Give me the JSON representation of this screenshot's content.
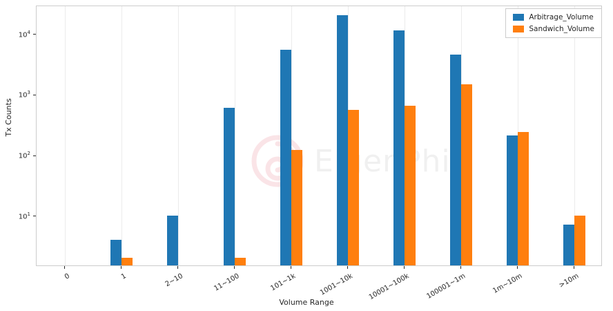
{
  "chart_data": {
    "type": "bar",
    "categories": [
      "0",
      "1",
      "2~10",
      "11~100",
      "101~1k",
      "1001~10k",
      "10001~100k",
      "100001~1m",
      "1m~10m",
      ">10m"
    ],
    "series": [
      {
        "name": "Arbitrage_Volume",
        "color": "#1f77b4",
        "values": [
          0,
          4,
          10,
          600,
          5500,
          20000,
          11500,
          4500,
          210,
          7
        ]
      },
      {
        "name": "Sandwich_Volume",
        "color": "#ff7f0e",
        "values": [
          0,
          2,
          0,
          2,
          120,
          560,
          650,
          1450,
          240,
          10
        ]
      }
    ],
    "title": "",
    "xlabel": "Volume Range",
    "ylabel": "Tx Counts",
    "yscale": "log",
    "ylim": [
      1.5,
      30000
    ],
    "yticks": [
      10,
      100,
      1000,
      10000
    ],
    "grid": "vertical-light",
    "legend_position": "upper right",
    "watermark": "EigenPhi"
  }
}
